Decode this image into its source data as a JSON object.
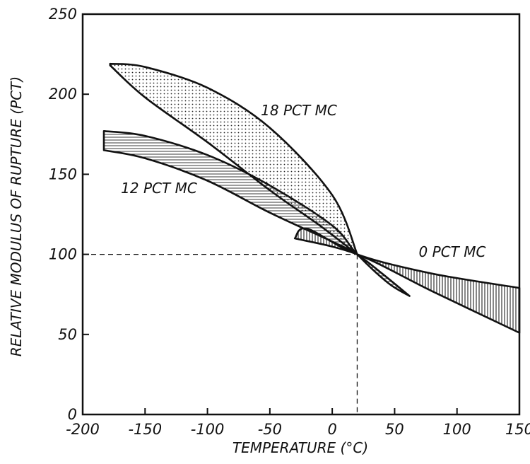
{
  "chart_data": {
    "type": "area",
    "xlabel": "TEMPERATURE (°C)",
    "ylabel": "RELATIVE MODULUS OF RUPTURE (PCT)",
    "xlim": [
      -200,
      150
    ],
    "ylim": [
      0,
      250
    ],
    "x_ticks": [
      "-200",
      "-150",
      "-100",
      "-50",
      "0",
      "50",
      "100",
      "150"
    ],
    "y_ticks": [
      "0",
      "50",
      "100",
      "150",
      "200",
      "250"
    ],
    "reference": {
      "x": 20,
      "y": 100
    },
    "series": [
      {
        "name": "18 PCT MC",
        "fill": "dots",
        "upper": [
          [
            -178,
            219
          ],
          [
            -150,
            217
          ],
          [
            -100,
            204
          ],
          [
            -50,
            179
          ],
          [
            0,
            137
          ],
          [
            20,
            100
          ]
        ],
        "lower": [
          [
            -178,
            218
          ],
          [
            -150,
            198
          ],
          [
            -100,
            170
          ],
          [
            -50,
            140
          ],
          [
            -10,
            118
          ],
          [
            20,
            100
          ]
        ]
      },
      {
        "name": "12 PCT MC",
        "fill": "horizontal-hatch",
        "upper": [
          [
            -183,
            177
          ],
          [
            -150,
            174
          ],
          [
            -100,
            162
          ],
          [
            -50,
            143
          ],
          [
            0,
            118
          ],
          [
            20,
            100
          ],
          [
            45,
            82
          ],
          [
            62,
            74
          ]
        ],
        "lower": [
          [
            -183,
            165
          ],
          [
            -150,
            160
          ],
          [
            -100,
            146
          ],
          [
            -50,
            126
          ],
          [
            0,
            108
          ],
          [
            20,
            100
          ],
          [
            40,
            88
          ],
          [
            62,
            74
          ]
        ]
      },
      {
        "name": "0 PCT MC",
        "fill": "vertical-hatch",
        "upper": [
          [
            -30,
            110
          ],
          [
            -20,
            116
          ],
          [
            20,
            100
          ],
          [
            80,
            88
          ],
          [
            150,
            79
          ]
        ],
        "lower": [
          [
            -30,
            110
          ],
          [
            20,
            100
          ],
          [
            80,
            77
          ],
          [
            150,
            51
          ]
        ]
      }
    ]
  }
}
